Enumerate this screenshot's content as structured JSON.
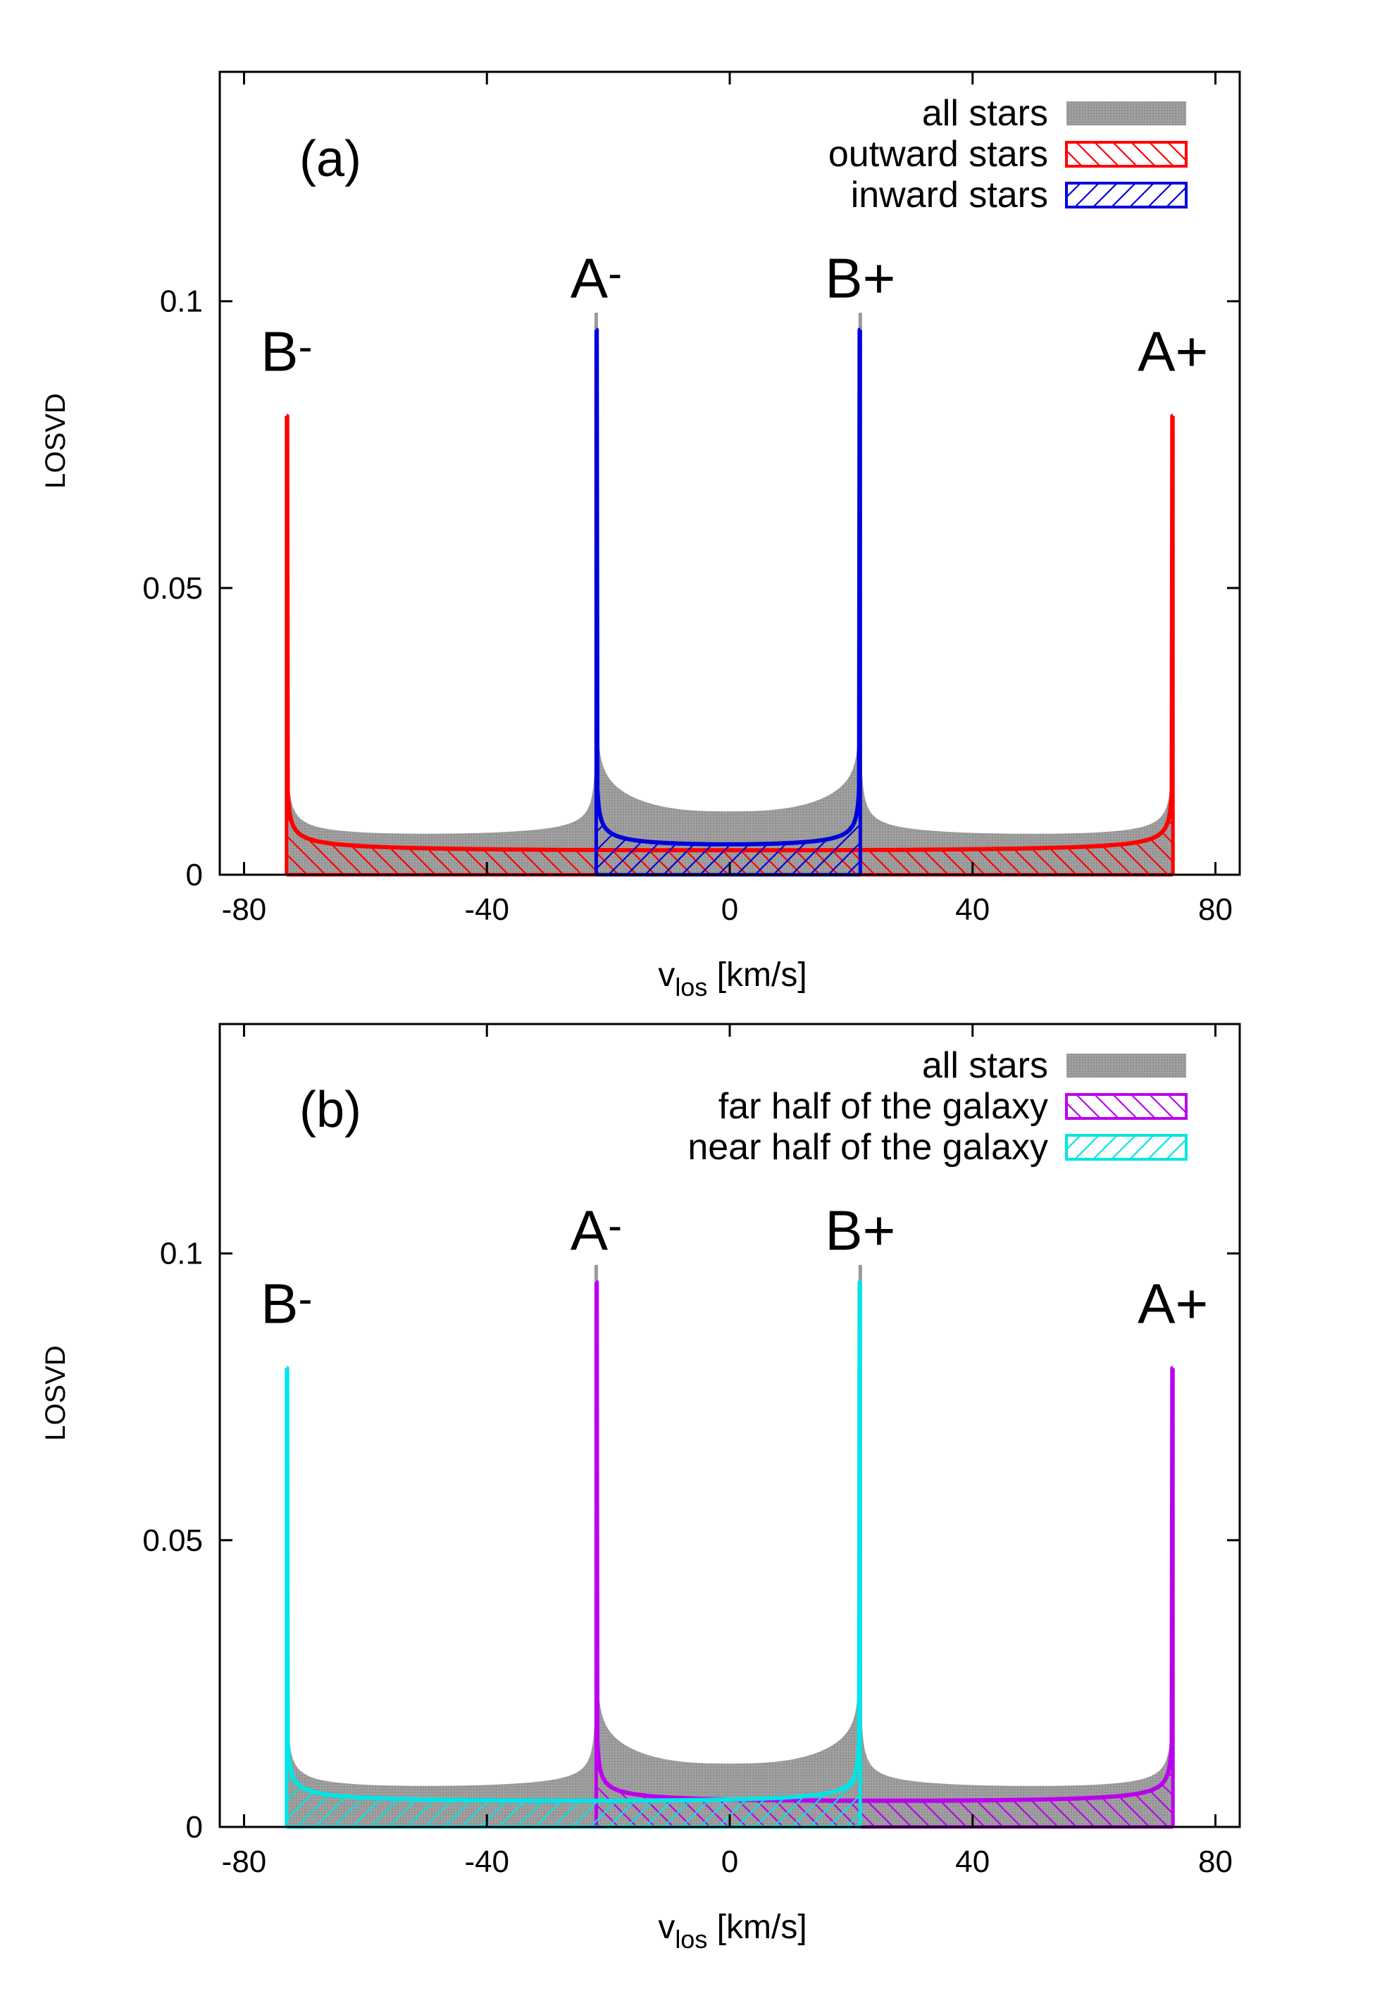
{
  "colors": {
    "all_stars": "#999999",
    "outward": "#ff0000",
    "inward": "#0000dd",
    "far": "#bb00ee",
    "near": "#00e5e5",
    "frame": "#000000"
  },
  "chart_data": [
    {
      "type": "area",
      "panel_label": "(a)",
      "xlabel": "v",
      "xlabel_sub": "los",
      "xlabel_unit": " [km/s]",
      "ylabel": "LOSVD",
      "xlim": [
        -84,
        84
      ],
      "ylim": [
        0,
        0.14
      ],
      "xticks": [
        -80,
        -40,
        0,
        40,
        80
      ],
      "yticks": [
        0,
        0.05,
        0.1
      ],
      "xtick_labels": [
        "-80",
        "-40",
        "0",
        "40",
        "80"
      ],
      "ytick_labels": [
        "0",
        "0.05",
        "0.1"
      ],
      "legend": [
        {
          "label": "all stars",
          "style": "solid-gray"
        },
        {
          "label": "outward stars",
          "style": "hatch-back-red"
        },
        {
          "label": "inward stars",
          "style": "hatch-fwd-blue"
        }
      ],
      "peaks": [
        {
          "label": "B-",
          "x": -73,
          "y": 0.08
        },
        {
          "label": "A-",
          "x": -22,
          "y": 0.095
        },
        {
          "label": "B+",
          "x": 21.5,
          "y": 0.095
        },
        {
          "label": "A+",
          "x": 73,
          "y": 0.08
        }
      ],
      "series": [
        {
          "name": "all stars",
          "range": [
            -73,
            73
          ],
          "peaks": [
            {
              "x": -73,
              "y": 0.08
            },
            {
              "x": -22,
              "y": 0.098
            },
            {
              "x": 21.5,
              "y": 0.098
            },
            {
              "x": 73,
              "y": 0.08
            }
          ],
          "outer_floor": 0.003,
          "inner_floor": 0.0065
        },
        {
          "name": "outward stars",
          "range": [
            -73,
            73
          ],
          "peaks": [
            {
              "x": -73,
              "y": 0.08
            },
            {
              "x": 73,
              "y": 0.08
            }
          ],
          "floor": 0.003
        },
        {
          "name": "inward stars",
          "range": [
            -22,
            21.5
          ],
          "peaks": [
            {
              "x": -22,
              "y": 0.095
            },
            {
              "x": 21.5,
              "y": 0.095
            }
          ],
          "floor": 0.003
        }
      ]
    },
    {
      "type": "area",
      "panel_label": "(b)",
      "xlabel": "v",
      "xlabel_sub": "los",
      "xlabel_unit": " [km/s]",
      "ylabel": "LOSVD",
      "xlim": [
        -84,
        84
      ],
      "ylim": [
        0,
        0.14
      ],
      "xticks": [
        -80,
        -40,
        0,
        40,
        80
      ],
      "yticks": [
        0,
        0.05,
        0.1
      ],
      "xtick_labels": [
        "-80",
        "-40",
        "0",
        "40",
        "80"
      ],
      "ytick_labels": [
        "0",
        "0.05",
        "0.1"
      ],
      "legend": [
        {
          "label": "all stars",
          "style": "solid-gray"
        },
        {
          "label": "far half of the galaxy",
          "style": "hatch-back-purple"
        },
        {
          "label": "near half of the galaxy",
          "style": "hatch-fwd-cyan"
        }
      ],
      "peaks": [
        {
          "label": "B-",
          "x": -73,
          "y": 0.08
        },
        {
          "label": "A-",
          "x": -22,
          "y": 0.095
        },
        {
          "label": "B+",
          "x": 21.5,
          "y": 0.095
        },
        {
          "label": "A+",
          "x": 73,
          "y": 0.08
        }
      ],
      "series": [
        {
          "name": "all stars",
          "range": [
            -73,
            73
          ],
          "peaks": [
            {
              "x": -73,
              "y": 0.08
            },
            {
              "x": -22,
              "y": 0.098
            },
            {
              "x": 21.5,
              "y": 0.098
            },
            {
              "x": 73,
              "y": 0.08
            }
          ],
          "outer_floor": 0.003,
          "inner_floor": 0.0065
        },
        {
          "name": "far half of the galaxy",
          "range": [
            -22,
            73
          ],
          "peaks": [
            {
              "x": -22,
              "y": 0.095
            },
            {
              "x": 73,
              "y": 0.08
            }
          ],
          "floor": 0.003
        },
        {
          "name": "near half of the galaxy",
          "range": [
            -73,
            21.5
          ],
          "peaks": [
            {
              "x": -73,
              "y": 0.08
            },
            {
              "x": 21.5,
              "y": 0.095
            }
          ],
          "floor": 0.003
        }
      ]
    }
  ]
}
